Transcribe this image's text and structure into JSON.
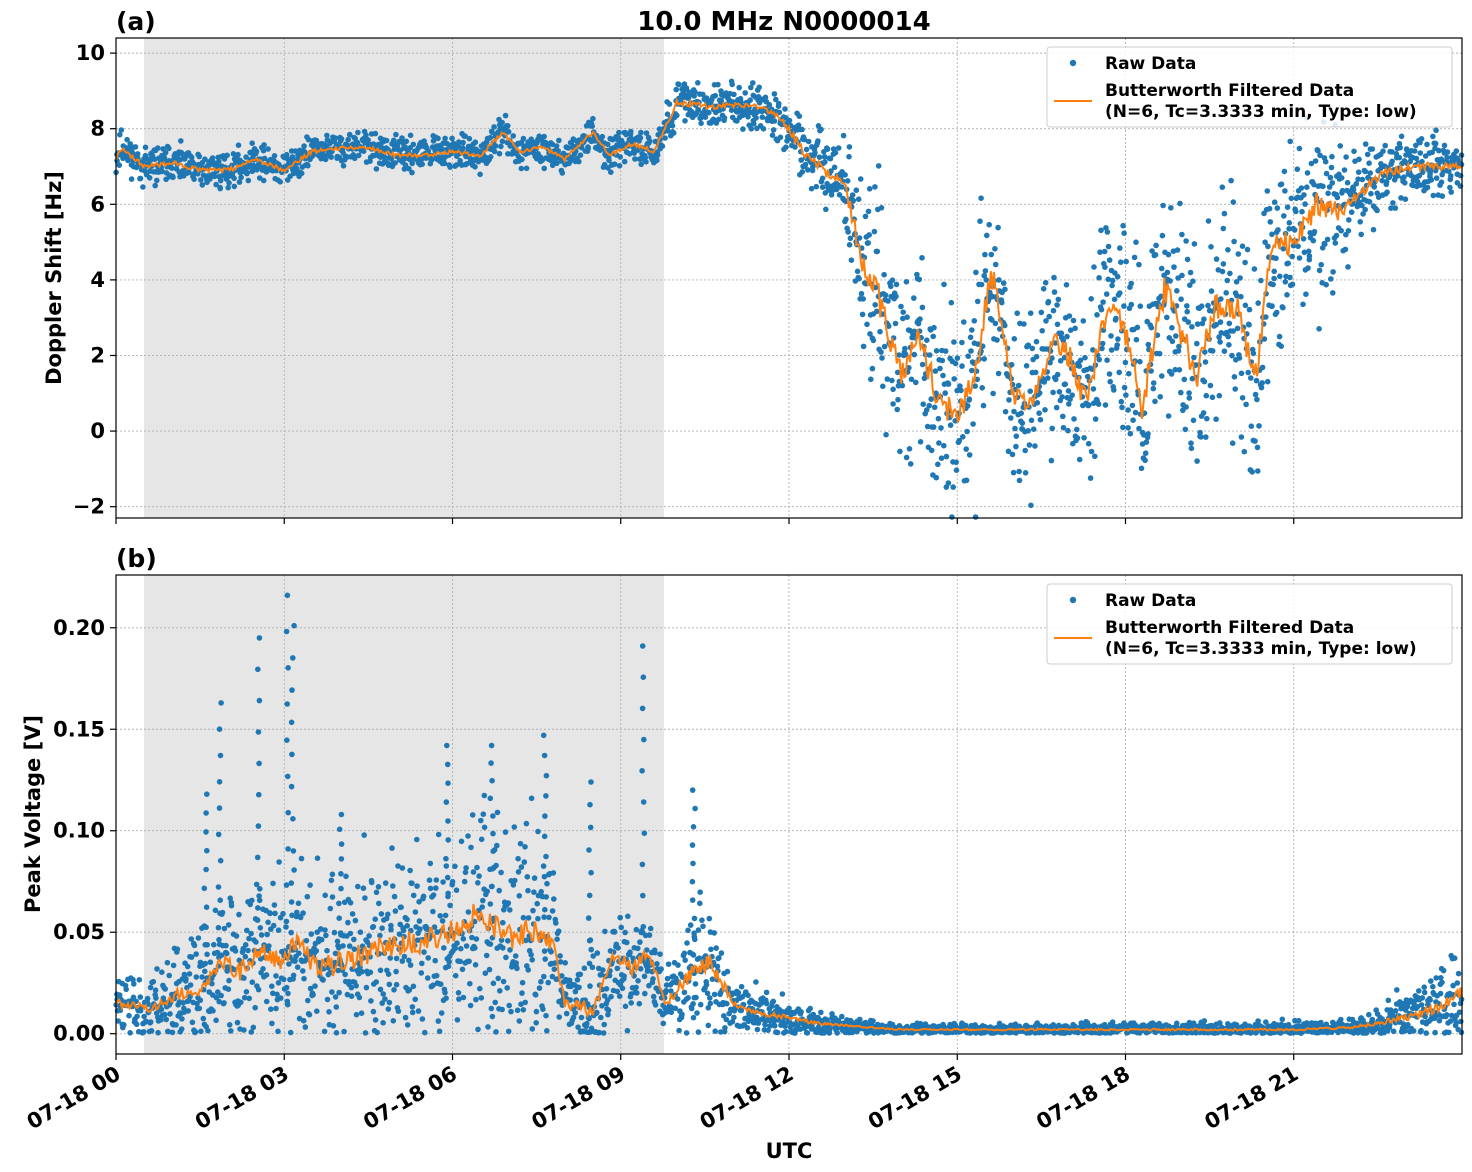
{
  "figure": {
    "title": "10.0 MHz N0000014",
    "xlabel": "UTC",
    "x_ticks": [
      "07-18 00",
      "07-18 03",
      "07-18 06",
      "07-18 09",
      "07-18 12",
      "07-18 15",
      "07-18 18",
      "07-18 21"
    ],
    "x_tick_hours": [
      0,
      3,
      6,
      9,
      12,
      15,
      18,
      21
    ],
    "x_range_hours": [
      0,
      24
    ],
    "shaded_region_hours": [
      0.5,
      9.77
    ],
    "colors": {
      "raw": "#1f77b4",
      "filtered": "#ff7f0e",
      "shade": "#e6e6e6",
      "grid": "#b0b0b0"
    },
    "legend": {
      "raw_label": "Raw Data",
      "filtered_label_line1": "Butterworth Filtered Data",
      "filtered_label_line2": "(N=6, Tc=3.3333 min, Type: low)",
      "placement": "top-right"
    }
  },
  "chart_data": [
    {
      "type": "scatter",
      "panel_label": "(a)",
      "title": "10.0 MHz N0000014",
      "xlabel": "",
      "ylabel": "Doppler Shift [Hz]",
      "ylim": [
        -2.3,
        10.4
      ],
      "y_ticks": [
        -2,
        0,
        2,
        4,
        6,
        8,
        10
      ],
      "y_tick_labels": [
        "−2",
        "0",
        "2",
        "4",
        "6",
        "8",
        "10"
      ],
      "grid": true,
      "series": [
        {
          "name": "Raw Data",
          "style": "points"
        },
        {
          "name": "Butterworth Filtered Data",
          "style": "line"
        }
      ],
      "filtered_keypoints": {
        "x": [
          0,
          0.1,
          0.5,
          1.0,
          1.5,
          2.0,
          2.5,
          3.0,
          3.5,
          4.0,
          4.5,
          5.0,
          5.5,
          6.0,
          6.5,
          6.9,
          7.2,
          7.6,
          8.0,
          8.5,
          8.8,
          9.2,
          9.6,
          10.0,
          10.5,
          11.0,
          11.5,
          11.9,
          12.3,
          12.7,
          13.0,
          13.3,
          13.6,
          14.0,
          14.3,
          14.7,
          15.0,
          15.3,
          15.6,
          16.0,
          16.3,
          16.7,
          17.0,
          17.3,
          17.7,
          18.0,
          18.3,
          18.7,
          19.0,
          19.3,
          19.6,
          20.0,
          20.3,
          20.6,
          21.0,
          21.4,
          21.8,
          22.2,
          22.6,
          23.0,
          23.5,
          24.0
        ],
        "y": [
          7.2,
          7.5,
          7.0,
          7.1,
          6.9,
          6.9,
          7.2,
          6.9,
          7.4,
          7.5,
          7.5,
          7.3,
          7.3,
          7.4,
          7.3,
          7.9,
          7.4,
          7.5,
          7.2,
          7.9,
          7.3,
          7.6,
          7.4,
          8.7,
          8.6,
          8.6,
          8.6,
          8.2,
          7.3,
          6.8,
          6.5,
          4.5,
          3.5,
          1.5,
          2.5,
          0.7,
          0.5,
          1.2,
          4.3,
          1.0,
          0.8,
          2.3,
          2.0,
          0.7,
          3.5,
          2.5,
          0.6,
          3.8,
          2.5,
          1.5,
          3.4,
          3.2,
          1.2,
          4.8,
          5.0,
          6.0,
          5.8,
          6.3,
          6.8,
          7.0,
          7.0,
          7.0
        ]
      },
      "raw_spread_y": {
        "x": [
          0,
          9.6,
          10.0,
          12.0,
          13.0,
          13.5,
          14.0,
          15.5,
          16.0,
          18.0,
          20.0,
          21.5,
          22.0,
          24.0
        ],
        "y": [
          0.35,
          0.3,
          0.45,
          0.45,
          0.9,
          2.4,
          1.8,
          2.4,
          1.6,
          2.2,
          2.3,
          1.9,
          0.9,
          0.45
        ]
      }
    },
    {
      "type": "scatter",
      "panel_label": "(b)",
      "title": "",
      "xlabel": "UTC",
      "ylabel": "Peak Voltage [V]",
      "ylim": [
        -0.01,
        0.226
      ],
      "y_ticks": [
        0.0,
        0.05,
        0.1,
        0.15,
        0.2
      ],
      "y_tick_labels": [
        "0.00",
        "0.05",
        "0.10",
        "0.15",
        "0.20"
      ],
      "grid": true,
      "series": [
        {
          "name": "Raw Data",
          "style": "points"
        },
        {
          "name": "Butterworth Filtered Data",
          "style": "line"
        }
      ],
      "filtered_keypoints": {
        "x": [
          0,
          0.6,
          1.0,
          1.5,
          1.9,
          2.2,
          2.6,
          3.0,
          3.2,
          3.6,
          4.0,
          4.5,
          5.0,
          5.5,
          6.0,
          6.5,
          7.0,
          7.5,
          7.8,
          8.0,
          8.5,
          8.9,
          9.2,
          9.5,
          9.8,
          10.2,
          10.6,
          11.0,
          11.5,
          12.0,
          12.5,
          13.0,
          14.0,
          15.0,
          16.0,
          18.0,
          20.0,
          21.0,
          22.0,
          22.5,
          23.0,
          23.5,
          24.0
        ],
        "y": [
          0.015,
          0.012,
          0.018,
          0.022,
          0.035,
          0.03,
          0.042,
          0.035,
          0.045,
          0.032,
          0.035,
          0.04,
          0.045,
          0.045,
          0.05,
          0.06,
          0.048,
          0.05,
          0.045,
          0.015,
          0.012,
          0.04,
          0.032,
          0.04,
          0.015,
          0.028,
          0.035,
          0.015,
          0.01,
          0.008,
          0.005,
          0.004,
          0.002,
          0.002,
          0.002,
          0.002,
          0.002,
          0.002,
          0.003,
          0.005,
          0.008,
          0.012,
          0.02
        ]
      },
      "raw_spread_y": {
        "x": [
          0,
          0.6,
          1.0,
          3.0,
          5.0,
          7.5,
          8.0,
          8.5,
          9.8,
          10.5,
          11.0,
          12.0,
          13.0,
          14.0,
          22.0,
          23.0,
          24.0
        ],
        "y": [
          0.012,
          0.012,
          0.018,
          0.03,
          0.035,
          0.04,
          0.012,
          0.025,
          0.012,
          0.03,
          0.01,
          0.006,
          0.003,
          0.002,
          0.003,
          0.01,
          0.018
        ]
      },
      "spikes": {
        "x": [
          1.6,
          1.85,
          2.55,
          3.05,
          3.15,
          4.0,
          5.9,
          6.7,
          7.65,
          8.45,
          9.4,
          10.3
        ],
        "y": [
          0.118,
          0.163,
          0.195,
          0.216,
          0.201,
          0.108,
          0.142,
          0.142,
          0.147,
          0.124,
          0.191,
          0.12
        ]
      }
    }
  ]
}
